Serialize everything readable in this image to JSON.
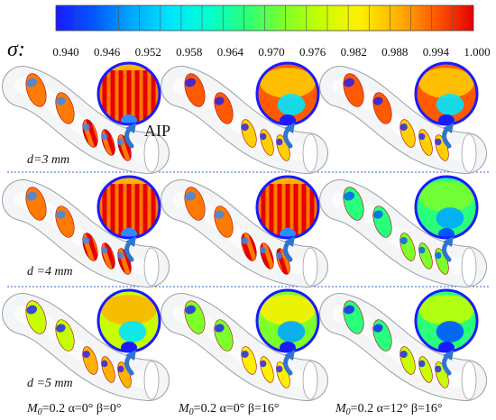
{
  "colorbar": {
    "symbol": "σ:",
    "ticks": [
      "0.940",
      "0.946",
      "0.952",
      "0.958",
      "0.964",
      "0.970",
      "0.976",
      "0.982",
      "0.988",
      "0.994",
      "1.000"
    ],
    "colors": [
      "#1a1aff",
      "#0057ff",
      "#00a8ff",
      "#00e5ff",
      "#00ffd0",
      "#29ff7a",
      "#7dff2a",
      "#c8ff00",
      "#fff000",
      "#ffb300",
      "#ff5a00",
      "#e60000"
    ]
  },
  "annotation": {
    "aip": "AIP"
  },
  "rows": [
    {
      "label": "d=3 mm"
    },
    {
      "label": "d =4 mm"
    },
    {
      "label": "d =5 mm"
    }
  ],
  "columns": [
    {
      "caption": "M0=0.2 α=0°  β=0°",
      "m": "M",
      "sub": "0",
      "rest": "=0.2 α=0°  β=0°"
    },
    {
      "caption": "M0=0.2 α=0°  β=16°",
      "m": "M",
      "sub": "0",
      "rest": "=0.2 α=0°  β=16°"
    },
    {
      "caption": "M0=0.2 α=12°  β=16°",
      "m": "M",
      "sub": "0",
      "rest": "=0.2 α=12°  β=16°"
    }
  ],
  "panels": [
    [
      "striped-high",
      "mixed-high",
      "mixed-high"
    ],
    [
      "striped-high",
      "striped-high",
      "low-uniform"
    ],
    [
      "mixed-mid",
      "mixed-low",
      "low-distorted"
    ]
  ],
  "colors": {
    "separator": "#3a5fcd",
    "arrow": "#2e74d1",
    "duct_edge": "#9aa0a6",
    "duct_fill": "#f4f5f6"
  }
}
